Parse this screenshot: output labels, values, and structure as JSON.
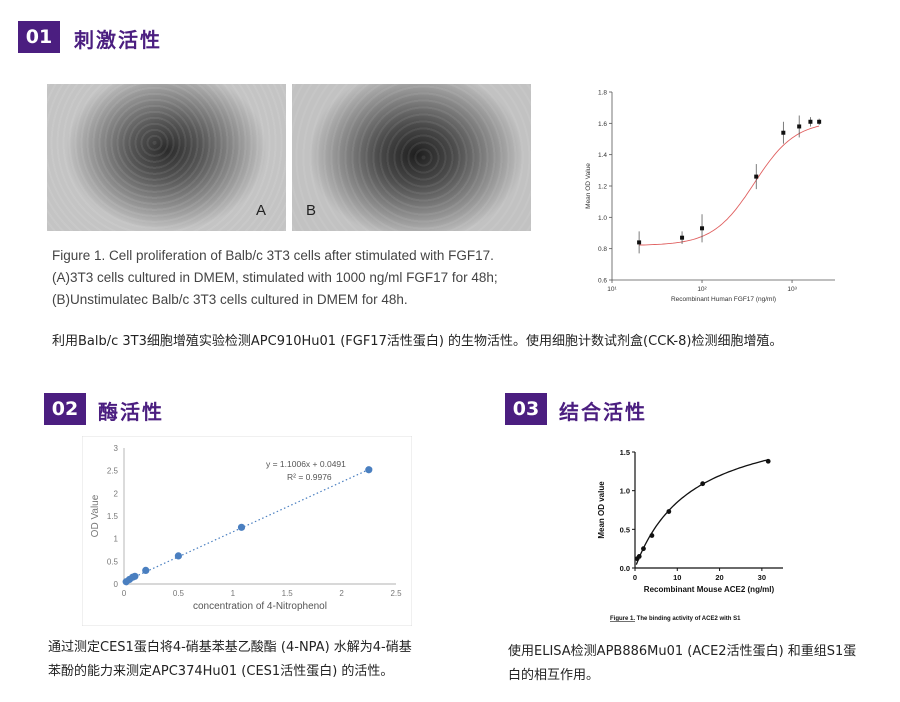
{
  "sections": [
    {
      "number": "01",
      "title": "刺激活性"
    },
    {
      "number": "02",
      "title": "酶活性"
    },
    {
      "number": "03",
      "title": "结合活性"
    }
  ],
  "micrographs": [
    {
      "letter": "A"
    },
    {
      "letter": "B"
    }
  ],
  "figure1_caption": [
    "Figure 1. Cell proliferation of Balb/c 3T3 cells after stimulated with FGF17.",
    "(A)3T3 cells cultured in DMEM, stimulated with 1000 ng/ml FGF17 for 48h;",
    "(B)Unstimulatec Balb/c 3T3 cells cultured in DMEM for 48h."
  ],
  "desc1": "利用Balb/c 3T3细胞增殖实验检测APC910Hu01 (FGF17活性蛋白) 的生物活性。使用细胞计数试剂盒(CCK-8)检测细胞增殖。",
  "desc2": [
    "通过测定CES1蛋白将4-硝基苯基乙酸酯 (4-NPA) 水解为4-硝基",
    "苯酚的能力来测定APC374Hu01 (CES1活性蛋白) 的活性。"
  ],
  "desc3": [
    "使用ELISA检测APB886Mu01 (ACE2活性蛋白) 和重组S1蛋",
    "白的相互作用。"
  ],
  "chart_data": [
    {
      "type": "scatter",
      "xlabel": "Recombinant Human FGF17 (ng/ml)",
      "ylabel": "Mean OD Value",
      "xscale": "log",
      "xlim": [
        10,
        3000
      ],
      "ylim": [
        0.6,
        1.8
      ],
      "yticks": [
        "0.6",
        "0.8",
        "1.0",
        "1.2",
        "1.4",
        "1.6",
        "1.8"
      ],
      "xticks": [
        "10¹",
        "10²",
        "10³"
      ],
      "x": [
        20,
        60,
        100,
        400,
        800,
        1200,
        1600,
        2000
      ],
      "y": [
        0.84,
        0.87,
        0.93,
        1.26,
        1.54,
        1.58,
        1.61,
        1.61
      ],
      "fit": "4-parameter logistic (red curve)",
      "colors": {
        "points": "#111111",
        "curve": "#e06060"
      }
    },
    {
      "type": "scatter",
      "xlabel": "concentration of 4-Nitrophenol",
      "ylabel": "OD Value",
      "xlim": [
        0,
        2.5
      ],
      "ylim": [
        0,
        3
      ],
      "xticks": [
        "0",
        "0.5",
        "1",
        "1.5",
        "2",
        "2.5"
      ],
      "yticks": [
        "0",
        "0.5",
        "1",
        "1.5",
        "2",
        "2.5",
        "3"
      ],
      "x": [
        0.02,
        0.05,
        0.08,
        0.1,
        0.2,
        0.5,
        1.08,
        2.25
      ],
      "y": [
        0.05,
        0.1,
        0.15,
        0.17,
        0.3,
        0.62,
        1.25,
        2.52
      ],
      "equation": "y = 1.1006x + 0.0491",
      "r2": "R² = 0.9976",
      "colors": {
        "points": "#4a7fc0",
        "trend": "#4a7fc0"
      }
    },
    {
      "type": "line",
      "xlabel": "Recombinant Mouse ACE2 (ng/ml)",
      "ylabel": "Mean OD value",
      "xlim": [
        0,
        35
      ],
      "ylim": [
        0,
        1.5
      ],
      "xticks": [
        "0",
        "10",
        "20",
        "30"
      ],
      "yticks": [
        "0.0",
        "0.5",
        "1.0",
        "1.5"
      ],
      "x": [
        0.5,
        1,
        2,
        4,
        8,
        16,
        31.5
      ],
      "y": [
        0.12,
        0.15,
        0.25,
        0.42,
        0.73,
        1.09,
        1.38
      ],
      "caption_label": "Figure 1.",
      "caption_text": " The binding activity of ACE2 with S1",
      "colors": {
        "points": "#111111",
        "curve": "#111111"
      }
    }
  ]
}
